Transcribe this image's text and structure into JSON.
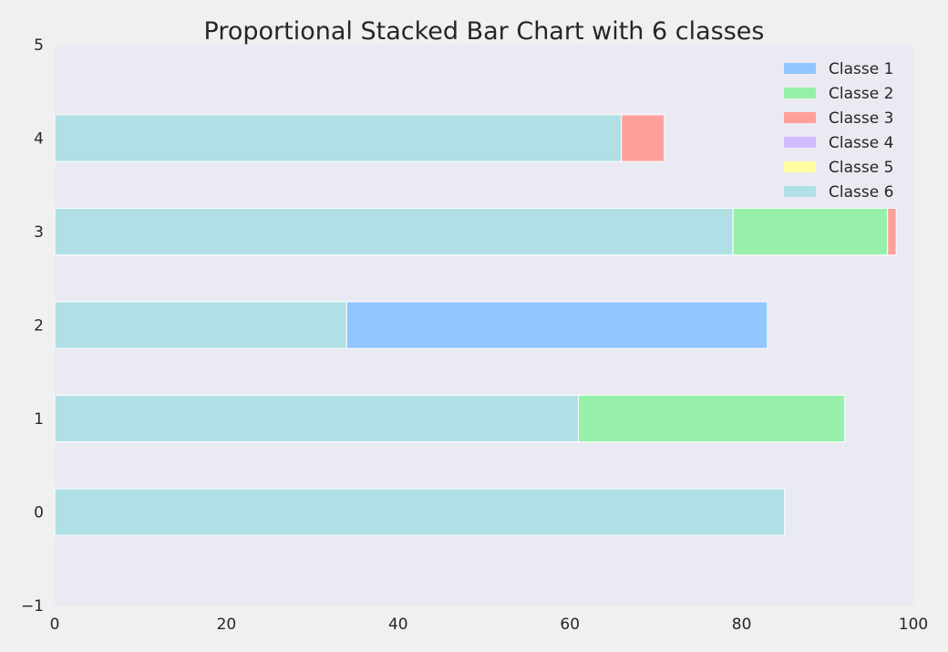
{
  "chart_data": {
    "type": "bar",
    "orientation": "horizontal",
    "stacked": true,
    "title": "Proportional Stacked Bar Chart with 6 classes",
    "xlabel": "",
    "ylabel": "",
    "xlim": [
      0,
      100
    ],
    "ylim": [
      -1,
      5
    ],
    "x_ticks": [
      "0",
      "20",
      "40",
      "60",
      "80",
      "100"
    ],
    "y_ticks": [
      "−1",
      "0",
      "1",
      "2",
      "3",
      "4",
      "5"
    ],
    "categories": [
      0,
      1,
      2,
      3,
      4
    ],
    "grid": false,
    "legend_position": "top-right",
    "series": [
      {
        "name": "Classe 1",
        "color": "#92c6ff",
        "values": [
          0,
          0,
          49,
          0,
          0
        ]
      },
      {
        "name": "Classe 2",
        "color": "#97f0aa",
        "values": [
          0,
          31,
          0,
          18,
          0
        ]
      },
      {
        "name": "Classe 3",
        "color": "#ff9f9a",
        "values": [
          0,
          0,
          0,
          1,
          5
        ]
      },
      {
        "name": "Classe 4",
        "color": "#d0bbff",
        "values": [
          0,
          0,
          0,
          0,
          0
        ]
      },
      {
        "name": "Classe 5",
        "color": "#fffea3",
        "values": [
          0,
          0,
          0,
          0,
          0
        ]
      },
      {
        "name": "Classe 6",
        "color": "#b0e0e6",
        "values": [
          85,
          61,
          34,
          79,
          66
        ]
      }
    ],
    "stack_order": [
      "Classe 6",
      "Classe 1",
      "Classe 2",
      "Classe 3",
      "Classe 4",
      "Classe 5"
    ]
  }
}
